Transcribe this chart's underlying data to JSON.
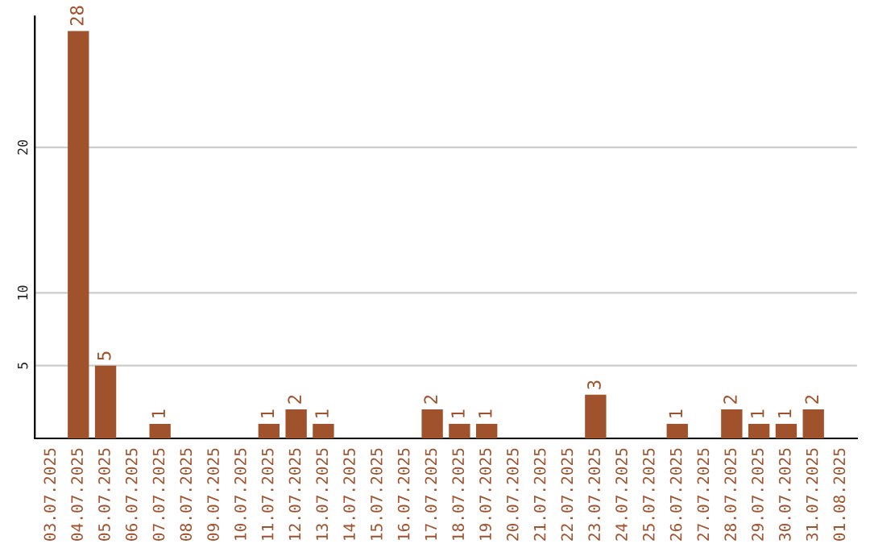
{
  "chart_data": {
    "type": "bar",
    "categories": [
      "03.07.2025",
      "04.07.2025",
      "05.07.2025",
      "06.07.2025",
      "07.07.2025",
      "08.07.2025",
      "09.07.2025",
      "10.07.2025",
      "11.07.2025",
      "12.07.2025",
      "13.07.2025",
      "14.07.2025",
      "15.07.2025",
      "16.07.2025",
      "17.07.2025",
      "18.07.2025",
      "19.07.2025",
      "20.07.2025",
      "21.07.2025",
      "22.07.2025",
      "23.07.2025",
      "24.07.2025",
      "25.07.2025",
      "26.07.2025",
      "27.07.2025",
      "28.07.2025",
      "29.07.2025",
      "30.07.2025",
      "31.07.2025",
      "01.08.2025"
    ],
    "values": [
      0,
      28,
      5,
      0,
      1,
      0,
      0,
      0,
      1,
      2,
      1,
      0,
      0,
      0,
      2,
      1,
      1,
      0,
      0,
      0,
      3,
      0,
      0,
      1,
      0,
      2,
      1,
      1,
      2,
      0
    ],
    "value_labels": [
      null,
      "28",
      "5",
      null,
      "1",
      null,
      null,
      null,
      "1",
      "2",
      "1",
      null,
      null,
      null,
      "2",
      "1",
      "1",
      null,
      null,
      null,
      "3",
      null,
      null,
      "1",
      null,
      "2",
      "1",
      "1",
      "2",
      null
    ],
    "color": "#a0522d",
    "ylim": [
      0,
      29
    ],
    "yticks": [
      5,
      10,
      20
    ],
    "grid": "y",
    "legend": false
  }
}
